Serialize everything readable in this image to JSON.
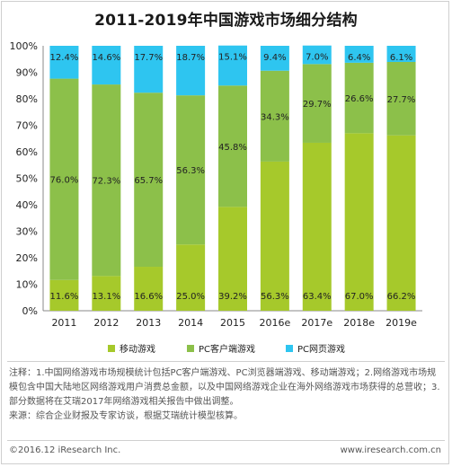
{
  "title": "2011-2019年中国游戏市场细分结构",
  "colors": {
    "mobile": "#a6c92b",
    "client": "#8cc04a",
    "web": "#2ec5f0"
  },
  "chart_data": {
    "type": "bar",
    "stacked": true,
    "categories": [
      "2011",
      "2012",
      "2013",
      "2014",
      "2015",
      "2016e",
      "2017e",
      "2018e",
      "2019e"
    ],
    "series": [
      {
        "name": "移动游戏",
        "values": [
          11.6,
          13.1,
          16.6,
          25.0,
          39.2,
          56.3,
          63.4,
          67.0,
          66.2
        ]
      },
      {
        "name": "PC客户端游戏",
        "values": [
          76.0,
          72.3,
          65.7,
          56.3,
          45.8,
          34.3,
          29.7,
          26.6,
          27.7
        ]
      },
      {
        "name": "PC网页游戏",
        "values": [
          12.4,
          14.6,
          17.7,
          18.7,
          15.1,
          9.4,
          7.0,
          6.4,
          6.1
        ]
      }
    ],
    "value_labels": [
      [
        "11.6%",
        "13.1%",
        "16.6%",
        "25.0%",
        "39.2%",
        "56.3%",
        "63.4%",
        "67.0%",
        "66.2%"
      ],
      [
        "76.0%",
        "72.3%",
        "65.7%",
        "56.3%",
        "45.8%",
        "34.3%",
        "29.7%",
        "26.6%",
        "27.7%"
      ],
      [
        "12.4%",
        "14.6%",
        "17.7%",
        "18.7%",
        "15.1%",
        "9.4%",
        "7.0%",
        "6.4%",
        "6.1%"
      ]
    ],
    "ylim": [
      0,
      100
    ],
    "yticks": [
      "0%",
      "10%",
      "20%",
      "30%",
      "40%",
      "50%",
      "60%",
      "70%",
      "80%",
      "90%",
      "100%"
    ],
    "legend_position": "bottom"
  },
  "notes": [
    "注释：1.中国网络游戏市场规模统计包括PC客户端游戏、PC浏览器端游戏、移动端游戏；2.网络游戏市场规模包含中国大陆地区网络游戏用户消费总金额，以及中国网络游戏企业在海外网络游戏市场获得的总营收；3.部分数据将在艾瑞2017年网络游戏相关报告中做出调整。",
    "来源：综合企业财报及专家访谈，根据艾瑞统计模型核算。"
  ],
  "footer": {
    "copyright": "©2016.12 iResearch Inc.",
    "url": "www.iresearch.com.cn"
  }
}
